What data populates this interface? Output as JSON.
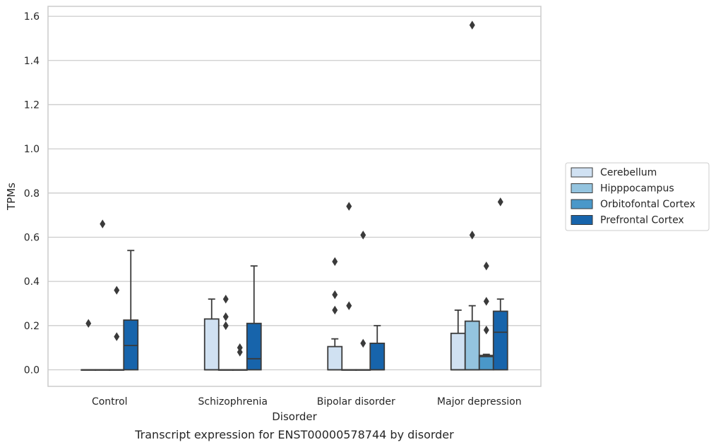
{
  "chart_data": {
    "type": "box",
    "title": "",
    "caption": "Transcript expression for ENST00000578744 by disorder",
    "xlabel": "Disorder",
    "ylabel": "TPMs",
    "ylim": [
      -0.075,
      1.645
    ],
    "yticks": [
      0.0,
      0.2,
      0.4,
      0.6,
      0.8,
      1.0,
      1.2,
      1.4,
      1.6
    ],
    "ytick_labels": [
      "0.0",
      "0.2",
      "0.4",
      "0.6",
      "0.8",
      "1.0",
      "1.2",
      "1.4",
      "1.6"
    ],
    "categories": [
      "Control",
      "Schizophrenia",
      "Bipolar disorder",
      "Major depression"
    ],
    "grid": "horizontal",
    "legend_position": "right",
    "series": [
      {
        "name": "Cerebellum",
        "color": "#d0e1f2",
        "boxes": [
          {
            "q1": 0,
            "median": 0,
            "q3": 0,
            "whislo": 0,
            "whishi": 0,
            "fliers": [
              0.21
            ]
          },
          {
            "q1": 0,
            "median": 0,
            "q3": 0.23,
            "whislo": 0,
            "whishi": 0.32,
            "fliers": []
          },
          {
            "q1": 0,
            "median": 0,
            "q3": 0.105,
            "whislo": 0,
            "whishi": 0.14,
            "fliers": [
              0.27,
              0.34,
              0.49
            ]
          },
          {
            "q1": 0,
            "median": 0,
            "q3": 0.165,
            "whislo": 0,
            "whishi": 0.27,
            "fliers": []
          }
        ]
      },
      {
        "name": "Hipppocampus",
        "color": "#94c4df",
        "boxes": [
          {
            "q1": 0,
            "median": 0,
            "q3": 0,
            "whislo": 0,
            "whishi": 0,
            "fliers": [
              0.66
            ]
          },
          {
            "q1": 0,
            "median": 0,
            "q3": 0,
            "whislo": 0,
            "whishi": 0,
            "fliers": [
              0.2,
              0.24,
              0.32
            ]
          },
          {
            "q1": 0,
            "median": 0,
            "q3": 0,
            "whislo": 0,
            "whishi": 0,
            "fliers": [
              0.29,
              0.74
            ]
          },
          {
            "q1": 0,
            "median": 0,
            "q3": 0.22,
            "whislo": 0,
            "whishi": 0.29,
            "fliers": [
              0.61,
              1.56
            ]
          }
        ]
      },
      {
        "name": "Orbitofontal Cortex",
        "color": "#4a98c9",
        "boxes": [
          {
            "q1": 0,
            "median": 0,
            "q3": 0,
            "whislo": 0,
            "whishi": 0,
            "fliers": [
              0.15,
              0.36
            ]
          },
          {
            "q1": 0,
            "median": 0,
            "q3": 0,
            "whislo": 0,
            "whishi": 0,
            "fliers": [
              0.08,
              0.1
            ]
          },
          {
            "q1": 0,
            "median": 0,
            "q3": 0,
            "whislo": 0,
            "whishi": 0,
            "fliers": [
              0.12,
              0.61
            ]
          },
          {
            "q1": 0,
            "median": 0.06,
            "q3": 0.065,
            "whislo": 0,
            "whishi": 0.07,
            "fliers": [
              0.18,
              0.31,
              0.47
            ]
          }
        ]
      },
      {
        "name": "Prefrontal Cortex",
        "color": "#1764ab",
        "boxes": [
          {
            "q1": 0,
            "median": 0.11,
            "q3": 0.225,
            "whislo": 0,
            "whishi": 0.54,
            "fliers": []
          },
          {
            "q1": 0,
            "median": 0.05,
            "q3": 0.21,
            "whislo": 0,
            "whishi": 0.47,
            "fliers": []
          },
          {
            "q1": 0,
            "median": 0,
            "q3": 0.12,
            "whislo": 0,
            "whishi": 0.2,
            "fliers": []
          },
          {
            "q1": 0,
            "median": 0.17,
            "q3": 0.265,
            "whislo": 0,
            "whishi": 0.32,
            "fliers": [
              0.76
            ]
          }
        ]
      }
    ]
  }
}
